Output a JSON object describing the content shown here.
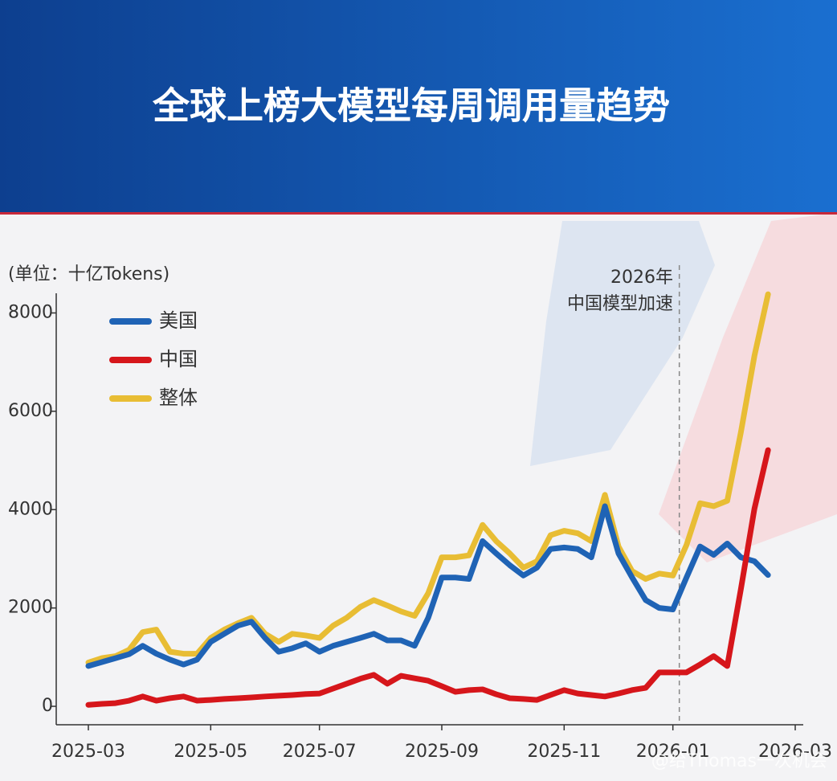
{
  "chart_data": {
    "type": "line",
    "title": "全球上榜大模型每周调用量趋势",
    "y_label": "(单位：十亿Tokens)",
    "annotation": [
      "2026年",
      "中国模型加速"
    ],
    "watermark": "@给Thomas一次机会",
    "legend_position": "upper left",
    "categories": [
      "2025-03",
      null,
      null,
      null,
      null,
      null,
      null,
      null,
      null,
      "2025-05",
      null,
      null,
      null,
      null,
      null,
      null,
      null,
      "2025-07",
      null,
      null,
      null,
      null,
      null,
      null,
      null,
      null,
      "2025-09",
      null,
      null,
      null,
      null,
      null,
      null,
      null,
      null,
      "2025-11",
      null,
      null,
      null,
      null,
      null,
      null,
      null,
      "2026-01",
      null,
      null,
      null,
      null,
      null,
      null,
      null,
      null,
      "2026-03"
    ],
    "ylim": [
      -375,
      8400
    ],
    "yticks": [
      0,
      2000,
      4000,
      6000,
      8000
    ],
    "series": [
      {
        "name": "美国",
        "color": "#1f63b5",
        "values": [
          820,
          900,
          980,
          1060,
          1230,
          1070,
          950,
          850,
          950,
          1310,
          1475,
          1640,
          1720,
          1390,
          1110,
          1180,
          1280,
          1110,
          1230,
          1310,
          1390,
          1475,
          1340,
          1340,
          1230,
          1800,
          2620,
          2620,
          2590,
          3360,
          3110,
          2870,
          2660,
          2820,
          3200,
          3230,
          3200,
          3030,
          4070,
          3110,
          2620,
          2160,
          2000,
          1970,
          2620,
          3250,
          3080,
          3310,
          3030,
          2950,
          2670,
          null,
          null
        ]
      },
      {
        "name": "中国",
        "color": "#d6161b",
        "values": [
          30,
          50,
          65,
          115,
          200,
          115,
          165,
          200,
          115,
          130,
          150,
          165,
          180,
          200,
          215,
          230,
          250,
          260,
          360,
          460,
          560,
          640,
          460,
          620,
          570,
          520,
          410,
          295,
          330,
          345,
          245,
          165,
          150,
          130,
          230,
          330,
          260,
          230,
          200,
          260,
          330,
          375,
          690,
          690,
          690,
          850,
          1020,
          820,
          2380,
          4020,
          5210,
          null,
          null
        ]
      },
      {
        "name": "整体",
        "color": "#e8bd34",
        "values": [
          890,
          980,
          1020,
          1150,
          1510,
          1560,
          1110,
          1070,
          1070,
          1390,
          1560,
          1690,
          1800,
          1475,
          1310,
          1475,
          1440,
          1390,
          1640,
          1800,
          2020,
          2160,
          2050,
          1930,
          1840,
          2300,
          3030,
          3030,
          3070,
          3690,
          3360,
          3110,
          2820,
          2950,
          3480,
          3570,
          3520,
          3360,
          4300,
          3250,
          2750,
          2590,
          2700,
          2660,
          3280,
          4130,
          4070,
          4180,
          5570,
          7130,
          8380,
          null,
          null
        ]
      }
    ]
  }
}
